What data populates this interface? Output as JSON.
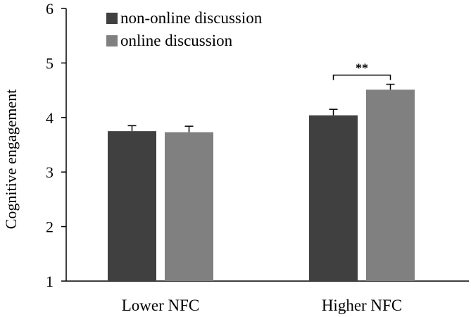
{
  "chart_data": {
    "type": "bar",
    "title": "",
    "xlabel": "",
    "ylabel": "Cognitive engagement",
    "ylim": [
      1,
      6
    ],
    "yticks": [
      "1",
      "2",
      "3",
      "4",
      "5",
      "6"
    ],
    "categories": [
      "Lower NFC",
      "Higher NFC"
    ],
    "series": [
      {
        "name": "non-online discussion",
        "color": "#404040",
        "values": [
          3.75,
          4.04
        ],
        "errors": [
          0.1,
          0.11
        ]
      },
      {
        "name": "online discussion",
        "color": "#808080",
        "values": [
          3.73,
          4.51
        ],
        "errors": [
          0.11,
          0.1
        ]
      }
    ],
    "significance": [
      {
        "category": "Higher NFC",
        "label": "**"
      }
    ],
    "legend_position": "top-left",
    "grid": false
  }
}
